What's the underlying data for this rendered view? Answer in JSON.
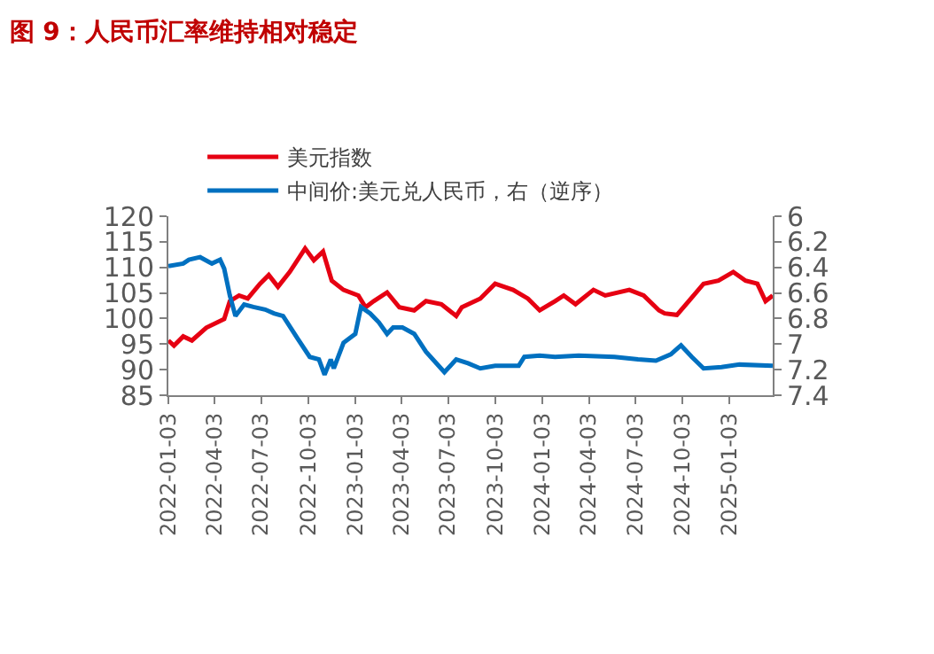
{
  "chart_data": {
    "type": "line",
    "title": "图 9：人民币汇率维持相对稳定",
    "xlim": [
      "2022-01-03",
      "2025-03-28"
    ],
    "xticks": [
      "2022-01-03",
      "2022-04-03",
      "2022-07-03",
      "2022-10-03",
      "2023-01-03",
      "2023-04-03",
      "2023-07-03",
      "2023-10-03",
      "2024-01-03",
      "2024-04-03",
      "2024-07-03",
      "2024-10-03",
      "2025-01-03"
    ],
    "ylim": [
      85,
      120
    ],
    "yticks": [
      85,
      90,
      95,
      100,
      105,
      110,
      115,
      120
    ],
    "y2lim": [
      7.4,
      6
    ],
    "y2ticks": [
      6,
      6.2,
      6.4,
      6.6,
      6.8,
      7,
      7.2,
      7.4
    ],
    "legend": "top",
    "marker": "none",
    "line_style": "solid",
    "series": [
      {
        "name": "美元指数",
        "color": "#e60012",
        "x": [
          "2022-01-03",
          "2022-01-14",
          "2022-02-01",
          "2022-02-18",
          "2022-03-18",
          "2022-04-22",
          "2022-05-03",
          "2022-05-21",
          "2022-06-07",
          "2022-07-01",
          "2022-07-18",
          "2022-08-05",
          "2022-08-28",
          "2022-09-27",
          "2022-10-14",
          "2022-11-01",
          "2022-11-18",
          "2022-12-11",
          "2023-01-09",
          "2023-01-23",
          "2023-02-08",
          "2023-03-06",
          "2023-03-30",
          "2023-04-28",
          "2023-05-21",
          "2023-06-20",
          "2023-07-19",
          "2023-07-30",
          "2023-09-04",
          "2023-10-03",
          "2023-11-07",
          "2023-12-06",
          "2023-12-29",
          "2024-01-28",
          "2024-02-14",
          "2024-03-08",
          "2024-04-12",
          "2024-05-05",
          "2024-06-21",
          "2024-07-19",
          "2024-08-18",
          "2024-08-29",
          "2024-09-22",
          "2024-10-15",
          "2024-11-13",
          "2024-12-12",
          "2025-01-10",
          "2025-02-03",
          "2025-02-26",
          "2025-03-14",
          "2025-03-28"
        ],
        "values": [
          95.7,
          94.7,
          96.5,
          95.7,
          98.2,
          99.9,
          103.4,
          104.5,
          103.9,
          106.8,
          108.5,
          106.2,
          109.1,
          113.7,
          111.4,
          113.1,
          107.4,
          105.6,
          104.5,
          102.2,
          103.4,
          105.1,
          102.2,
          101.6,
          103.4,
          102.8,
          100.5,
          102.2,
          103.9,
          106.8,
          105.6,
          103.9,
          101.6,
          103.4,
          104.5,
          102.8,
          105.6,
          104.5,
          105.6,
          104.5,
          101.6,
          101.0,
          100.7,
          103.4,
          106.8,
          107.4,
          109.1,
          107.4,
          106.8,
          103.4,
          104.5
        ]
      },
      {
        "name": "中间价:美元兑人民币，右（逆序）",
        "color": "#0070c0",
        "axis": "y2",
        "x": [
          "2022-01-03",
          "2022-02-01",
          "2022-02-12",
          "2022-03-06",
          "2022-03-29",
          "2022-04-14",
          "2022-04-22",
          "2022-05-03",
          "2022-05-14",
          "2022-05-31",
          "2022-06-18",
          "2022-07-11",
          "2022-07-28",
          "2022-08-15",
          "2022-09-13",
          "2022-10-06",
          "2022-10-24",
          "2022-11-04",
          "2022-11-16",
          "2022-11-22",
          "2022-12-11",
          "2023-01-03",
          "2023-01-14",
          "2023-02-01",
          "2023-02-18",
          "2023-03-06",
          "2023-03-18",
          "2023-04-05",
          "2023-04-28",
          "2023-05-21",
          "2023-06-26",
          "2023-07-19",
          "2023-08-11",
          "2023-09-04",
          "2023-10-03",
          "2023-11-18",
          "2023-11-29",
          "2023-12-29",
          "2024-01-28",
          "2024-03-14",
          "2024-05-23",
          "2024-07-08",
          "2024-08-12",
          "2024-09-10",
          "2024-09-30",
          "2024-10-21",
          "2024-11-13",
          "2024-12-18",
          "2025-01-22",
          "2025-03-28"
        ],
        "values": [
          6.39,
          6.37,
          6.34,
          6.32,
          6.37,
          6.34,
          6.41,
          6.62,
          6.78,
          6.69,
          6.71,
          6.73,
          6.76,
          6.78,
          6.96,
          7.1,
          7.12,
          7.24,
          7.12,
          7.19,
          6.99,
          6.92,
          6.71,
          6.76,
          6.83,
          6.92,
          6.87,
          6.87,
          6.92,
          7.06,
          7.22,
          7.12,
          7.15,
          7.19,
          7.17,
          7.17,
          7.1,
          7.09,
          7.1,
          7.09,
          7.1,
          7.12,
          7.13,
          7.08,
          7.01,
          7.1,
          7.19,
          7.18,
          7.16,
          7.17
        ]
      }
    ]
  }
}
